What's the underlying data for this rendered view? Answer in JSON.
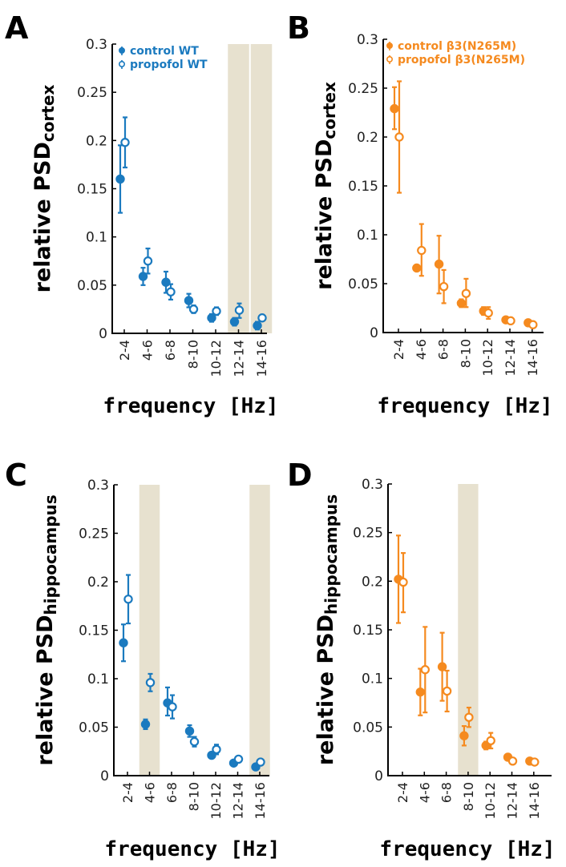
{
  "colors": {
    "blue": "#1b7abf",
    "orange": "#f58a1f",
    "shade": "#e7e1cf"
  },
  "chart_data": [
    {
      "type": "scatter",
      "panel": "A",
      "ylabel_main": "relative PSD",
      "ylabel_sub": "cortex",
      "xlabel": "frequency [Hz]",
      "ylim": [
        0,
        0.3
      ],
      "yticks": [
        "0",
        "0.05",
        "0.1",
        "0.15",
        "0.2",
        "0.25",
        "0.3"
      ],
      "categories": [
        "2-4",
        "4-6",
        "6-8",
        "8-10",
        "10-12",
        "12-14",
        "14-16"
      ],
      "shaded_categories": [
        "12-14",
        "14-16"
      ],
      "color": "#1b7abf",
      "series": [
        {
          "name": "control WT",
          "filled": true,
          "values": [
            0.16,
            0.059,
            0.053,
            0.034,
            0.016,
            0.012,
            0.008
          ],
          "err_low": [
            0.125,
            0.05,
            0.042,
            0.027,
            0.012,
            0.008,
            0.004
          ],
          "err_high": [
            0.195,
            0.068,
            0.064,
            0.041,
            0.02,
            0.016,
            0.012
          ]
        },
        {
          "name": "propofol WT",
          "filled": false,
          "values": [
            0.198,
            0.075,
            0.043,
            0.025,
            0.023,
            0.024,
            0.016
          ],
          "err_low": [
            0.172,
            0.062,
            0.035,
            0.021,
            0.019,
            0.016,
            0.014
          ],
          "err_high": [
            0.224,
            0.088,
            0.051,
            0.029,
            0.027,
            0.031,
            0.018
          ]
        }
      ]
    },
    {
      "type": "scatter",
      "panel": "B",
      "ylabel_main": "relative PSD",
      "ylabel_sub": "cortex",
      "xlabel": "frequency [Hz]",
      "ylim": [
        0,
        0.3
      ],
      "yticks": [
        "0",
        "0.05",
        "0.1",
        "0.15",
        "0.2",
        "0.25",
        "0.3"
      ],
      "categories": [
        "2-4",
        "4-6",
        "6-8",
        "8-10",
        "10-12",
        "12-14",
        "14-16"
      ],
      "shaded_categories": [],
      "color": "#f58a1f",
      "series": [
        {
          "name": "control β3(N265M)",
          "filled": true,
          "values": [
            0.229,
            0.066,
            0.07,
            0.03,
            0.022,
            0.013,
            0.01
          ],
          "err_low": [
            0.208,
            0.064,
            0.04,
            0.026,
            0.018,
            0.011,
            0.008
          ],
          "err_high": [
            0.251,
            0.068,
            0.099,
            0.034,
            0.026,
            0.015,
            0.012
          ]
        },
        {
          "name": "propofol β3(N265M)",
          "filled": false,
          "values": [
            0.2,
            0.084,
            0.047,
            0.04,
            0.02,
            0.012,
            0.008
          ],
          "err_low": [
            0.143,
            0.058,
            0.03,
            0.026,
            0.014,
            0.01,
            0.006
          ],
          "err_high": [
            0.257,
            0.111,
            0.064,
            0.055,
            0.026,
            0.014,
            0.01
          ]
        }
      ]
    },
    {
      "type": "scatter",
      "panel": "C",
      "ylabel_main": "relative PSD",
      "ylabel_sub": "hippocampus",
      "xlabel": "frequency [Hz]",
      "ylim": [
        0,
        0.3
      ],
      "yticks": [
        "0",
        "0.05",
        "0.1",
        "0.15",
        "0.2",
        "0.25",
        "0.3"
      ],
      "categories": [
        "2-4",
        "4-6",
        "6-8",
        "8-10",
        "10-12",
        "12-14",
        "14-16"
      ],
      "shaded_categories": [
        "4-6",
        "14-16"
      ],
      "color": "#1b7abf",
      "series": [
        {
          "name": "control WT",
          "filled": true,
          "values": [
            0.137,
            0.053,
            0.075,
            0.046,
            0.021,
            0.013,
            0.009
          ],
          "err_low": [
            0.118,
            0.048,
            0.062,
            0.04,
            0.018,
            0.011,
            0.007
          ],
          "err_high": [
            0.156,
            0.058,
            0.091,
            0.052,
            0.024,
            0.015,
            0.011
          ]
        },
        {
          "name": "propofol WT",
          "filled": false,
          "values": [
            0.182,
            0.096,
            0.071,
            0.035,
            0.027,
            0.017,
            0.014
          ],
          "err_low": [
            0.157,
            0.087,
            0.059,
            0.03,
            0.022,
            0.015,
            0.012
          ],
          "err_high": [
            0.207,
            0.105,
            0.083,
            0.04,
            0.032,
            0.019,
            0.016
          ]
        }
      ]
    },
    {
      "type": "scatter",
      "panel": "D",
      "ylabel_main": "relative PSD",
      "ylabel_sub": "hippocampus",
      "xlabel": "frequency [Hz]",
      "ylim": [
        0,
        0.3
      ],
      "yticks": [
        "0",
        "0.05",
        "0.1",
        "0.15",
        "0.2",
        "0.25",
        "0.3"
      ],
      "categories": [
        "2-4",
        "4-6",
        "6-8",
        "8-10",
        "10-12",
        "12-14",
        "14-16"
      ],
      "shaded_categories": [
        "8-10"
      ],
      "color": "#f58a1f",
      "series": [
        {
          "name": "control β3(N265M)",
          "filled": true,
          "values": [
            0.202,
            0.086,
            0.112,
            0.041,
            0.031,
            0.019,
            0.015
          ],
          "err_low": [
            0.157,
            0.062,
            0.077,
            0.031,
            0.027,
            0.016,
            0.013
          ],
          "err_high": [
            0.247,
            0.11,
            0.147,
            0.051,
            0.035,
            0.022,
            0.017
          ]
        },
        {
          "name": "propofol β3(N265M)",
          "filled": false,
          "values": [
            0.199,
            0.109,
            0.087,
            0.06,
            0.036,
            0.015,
            0.014
          ],
          "err_low": [
            0.168,
            0.065,
            0.066,
            0.05,
            0.028,
            0.013,
            0.012
          ],
          "err_high": [
            0.229,
            0.153,
            0.108,
            0.07,
            0.044,
            0.017,
            0.016
          ]
        }
      ]
    }
  ]
}
